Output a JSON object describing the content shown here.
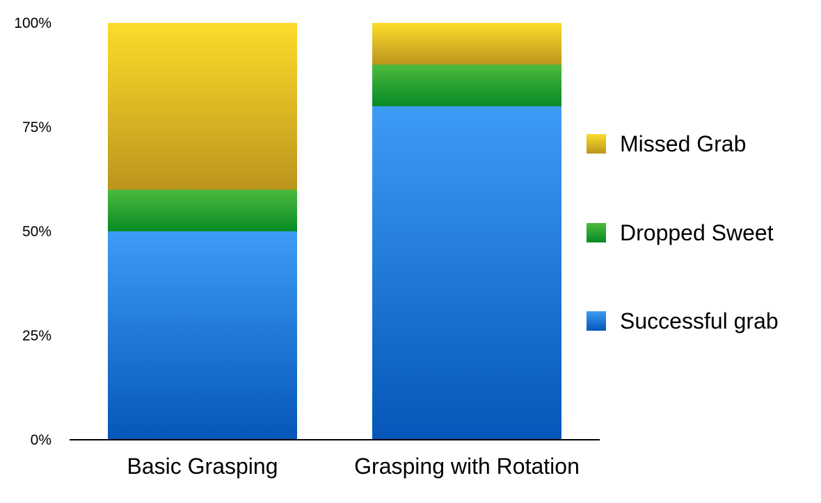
{
  "chart_data": {
    "type": "bar",
    "stacked": true,
    "percent": true,
    "categories": [
      "Basic Grasping",
      "Grasping with Rotation"
    ],
    "series": [
      {
        "name": "Successful grab",
        "values": [
          50,
          80
        ],
        "color": "#1f7fe0"
      },
      {
        "name": "Dropped Sweet",
        "values": [
          10,
          10
        ],
        "color": "#1f9e35"
      },
      {
        "name": "Missed Grab",
        "values": [
          40,
          10
        ],
        "color": "#d9b525"
      }
    ],
    "ylim": [
      0,
      100
    ],
    "yticks": [
      "0%",
      "25%",
      "50%",
      "75%",
      "100%"
    ],
    "grid": false,
    "legend_position": "right"
  }
}
